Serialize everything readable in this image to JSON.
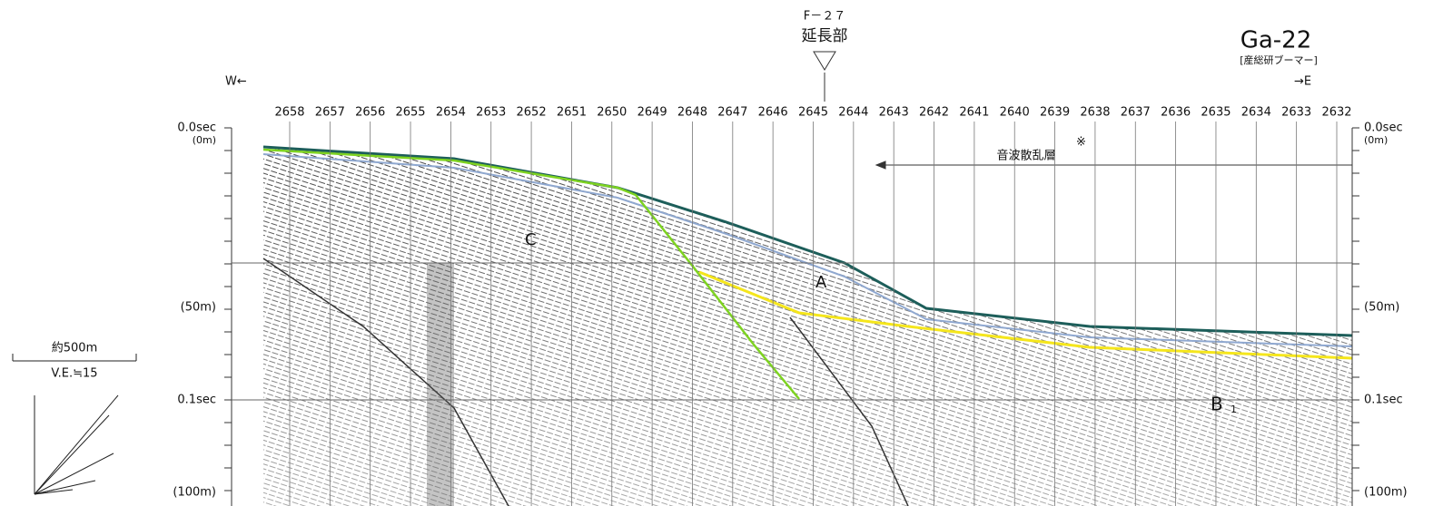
{
  "title": "Ga-22",
  "subtitle": "[産総研ブーマー]",
  "marker": {
    "name": "F－２７",
    "label": "延長部"
  },
  "west": "W←",
  "east": "→E",
  "shot_points": [
    "2658",
    "2657",
    "2656",
    "2655",
    "2654",
    "2653",
    "2652",
    "2651",
    "2650",
    "2649",
    "2648",
    "2647",
    "2646",
    "2645",
    "2644",
    "2643",
    "2642",
    "2641",
    "2640",
    "2639",
    "2638",
    "2637",
    "2636",
    "2635",
    "2634",
    "2633",
    "2632"
  ],
  "left_axis": [
    {
      "time": "0.0sec",
      "depth": "(0m)"
    },
    {
      "depth": "(50m)"
    },
    {
      "time": "0.1sec"
    },
    {
      "depth": "(100m)"
    }
  ],
  "right_axis": [
    {
      "time": "0.0sec",
      "depth": "(0m)"
    },
    {
      "depth": "(50m)"
    },
    {
      "time": "0.1sec"
    },
    {
      "depth": "(100m)"
    }
  ],
  "annotation": {
    "text": "音波散乱層",
    "note": "※"
  },
  "units": [
    "A",
    "B",
    "C"
  ],
  "unit_subscript": "1",
  "scale": {
    "distance": "約500m",
    "exaggeration": "V.E.≒15"
  }
}
